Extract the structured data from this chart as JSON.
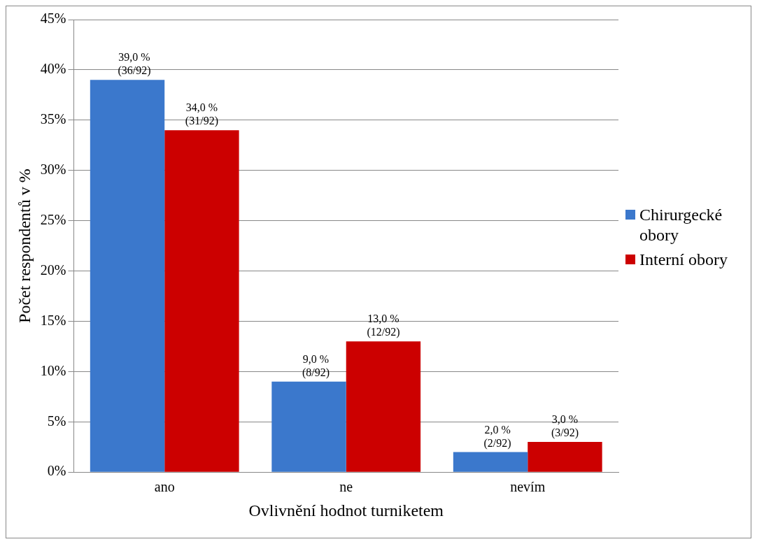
{
  "chart_data": {
    "type": "bar",
    "xlabel": "Ovlivnění hodnot turniketem",
    "ylabel": "Počet respondentů v %",
    "categories": [
      "ano",
      "ne",
      "nevím"
    ],
    "series": [
      {
        "name": "Chirurgecké obory",
        "color": "#3b78cc",
        "values": [
          39,
          9,
          2
        ],
        "value_labels": [
          "39,0 %\n(36/92)",
          "9,0 %\n(8/92)",
          "2,0 %\n(2/92)"
        ]
      },
      {
        "name": "Interní obory",
        "color": "#cc0000",
        "values": [
          34,
          13,
          3
        ],
        "value_labels": [
          "34,0 %\n(31/92)",
          "13,0 %\n(12/92)",
          "3,0 %\n(3/92)"
        ]
      }
    ],
    "ylim": [
      0,
      45
    ],
    "yticks": [
      {
        "value": 0,
        "label": "0%"
      },
      {
        "value": 5,
        "label": "5%"
      },
      {
        "value": 10,
        "label": "10%"
      },
      {
        "value": 15,
        "label": "15%"
      },
      {
        "value": 20,
        "label": "20%"
      },
      {
        "value": 25,
        "label": "25%"
      },
      {
        "value": 30,
        "label": "30%"
      },
      {
        "value": 35,
        "label": "35%"
      },
      {
        "value": 40,
        "label": "40%"
      },
      {
        "value": 45,
        "label": "45%"
      }
    ],
    "grid": "y",
    "legend": "right"
  }
}
